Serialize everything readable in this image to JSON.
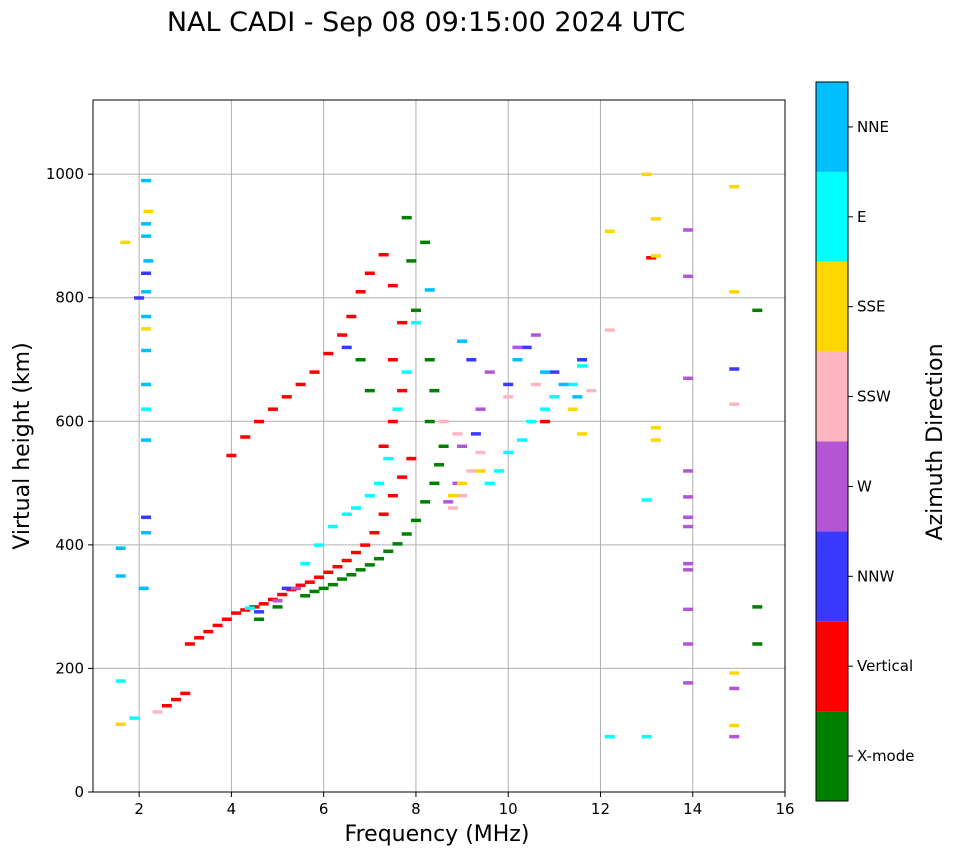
{
  "chart_data": {
    "type": "scatter",
    "title": "NAL CADI - Sep 08 09:15:00 2024 UTC",
    "xlabel": "Frequency (MHz)",
    "ylabel": "Virtual height (km)",
    "xlim": [
      1,
      16
    ],
    "ylim": [
      0,
      1120
    ],
    "xticks": [
      2,
      4,
      6,
      8,
      10,
      12,
      14,
      16
    ],
    "yticks": [
      0,
      200,
      400,
      600,
      800,
      1000
    ],
    "grid": true,
    "colorbar": {
      "label": "Azimuth Direction",
      "categories": [
        {
          "name": "X-mode",
          "color": "#008000"
        },
        {
          "name": "Vertical",
          "color": "#ff0000"
        },
        {
          "name": "NNW",
          "color": "#3a3aff"
        },
        {
          "name": "W",
          "color": "#b455d6"
        },
        {
          "name": "SSW",
          "color": "#ffb6c1"
        },
        {
          "name": "SSE",
          "color": "#ffd700"
        },
        {
          "name": "E",
          "color": "#00ffff"
        },
        {
          "name": "NNE",
          "color": "#00bfff"
        }
      ]
    },
    "series": [
      {
        "name": "X-mode",
        "points": [
          [
            5.6,
            318
          ],
          [
            5.8,
            325
          ],
          [
            6.0,
            330
          ],
          [
            6.2,
            336
          ],
          [
            6.4,
            345
          ],
          [
            6.6,
            352
          ],
          [
            6.8,
            360
          ],
          [
            7.0,
            368
          ],
          [
            7.2,
            378
          ],
          [
            7.4,
            390
          ],
          [
            7.6,
            402
          ],
          [
            7.8,
            418
          ],
          [
            8.0,
            440
          ],
          [
            8.2,
            470
          ],
          [
            8.4,
            500
          ],
          [
            8.5,
            530
          ],
          [
            8.6,
            560
          ],
          [
            8.3,
            600
          ],
          [
            8.4,
            650
          ],
          [
            8.3,
            700
          ],
          [
            8.0,
            780
          ],
          [
            7.9,
            860
          ],
          [
            7.8,
            930
          ],
          [
            8.2,
            890
          ],
          [
            4.6,
            280
          ],
          [
            5.0,
            300
          ],
          [
            15.4,
            780
          ],
          [
            15.4,
            300
          ],
          [
            15.4,
            240
          ],
          [
            7.0,
            650
          ],
          [
            6.8,
            700
          ]
        ]
      },
      {
        "name": "Vertical",
        "points": [
          [
            2.6,
            140
          ],
          [
            2.8,
            150
          ],
          [
            3.0,
            160
          ],
          [
            3.1,
            240
          ],
          [
            3.3,
            250
          ],
          [
            3.5,
            260
          ],
          [
            3.7,
            270
          ],
          [
            3.9,
            280
          ],
          [
            4.1,
            290
          ],
          [
            4.3,
            295
          ],
          [
            4.5,
            300
          ],
          [
            4.7,
            305
          ],
          [
            4.9,
            312
          ],
          [
            5.1,
            320
          ],
          [
            5.3,
            328
          ],
          [
            5.5,
            335
          ],
          [
            5.7,
            340
          ],
          [
            5.9,
            348
          ],
          [
            6.1,
            356
          ],
          [
            6.3,
            365
          ],
          [
            6.5,
            375
          ],
          [
            6.7,
            388
          ],
          [
            6.9,
            400
          ],
          [
            7.1,
            420
          ],
          [
            7.3,
            450
          ],
          [
            7.5,
            480
          ],
          [
            7.7,
            510
          ],
          [
            7.9,
            540
          ],
          [
            4.0,
            545
          ],
          [
            4.3,
            575
          ],
          [
            4.6,
            600
          ],
          [
            4.9,
            620
          ],
          [
            5.2,
            640
          ],
          [
            5.5,
            660
          ],
          [
            5.8,
            680
          ],
          [
            6.1,
            710
          ],
          [
            6.4,
            740
          ],
          [
            6.6,
            770
          ],
          [
            6.8,
            810
          ],
          [
            7.0,
            840
          ],
          [
            7.3,
            870
          ],
          [
            7.5,
            820
          ],
          [
            7.7,
            760
          ],
          [
            7.5,
            700
          ],
          [
            7.7,
            650
          ],
          [
            7.5,
            600
          ],
          [
            7.3,
            560
          ],
          [
            10.8,
            600
          ],
          [
            13.1,
            865
          ]
        ]
      },
      {
        "name": "NNW",
        "points": [
          [
            2.15,
            840
          ],
          [
            2.15,
            445
          ],
          [
            4.6,
            292
          ],
          [
            5.2,
            330
          ],
          [
            6.5,
            720
          ],
          [
            9.2,
            700
          ],
          [
            9.3,
            580
          ],
          [
            10.0,
            660
          ],
          [
            10.4,
            720
          ],
          [
            11.0,
            680
          ],
          [
            11.6,
            700
          ],
          [
            14.9,
            685
          ],
          [
            2.0,
            800
          ]
        ]
      },
      {
        "name": "W",
        "points": [
          [
            5.0,
            310
          ],
          [
            5.4,
            330
          ],
          [
            9.0,
            560
          ],
          [
            9.4,
            620
          ],
          [
            9.6,
            680
          ],
          [
            10.2,
            720
          ],
          [
            10.6,
            740
          ],
          [
            8.7,
            470
          ],
          [
            8.9,
            500
          ],
          [
            13.9,
            910
          ],
          [
            13.9,
            835
          ],
          [
            13.9,
            670
          ],
          [
            13.9,
            520
          ],
          [
            13.9,
            478
          ],
          [
            13.9,
            445
          ],
          [
            13.9,
            430
          ],
          [
            13.9,
            370
          ],
          [
            13.9,
            360
          ],
          [
            13.9,
            296
          ],
          [
            13.9,
            240
          ],
          [
            13.9,
            177
          ],
          [
            14.9,
            168
          ],
          [
            14.9,
            90
          ]
        ]
      },
      {
        "name": "SSW",
        "points": [
          [
            2.4,
            130
          ],
          [
            8.8,
            460
          ],
          [
            9.0,
            480
          ],
          [
            9.2,
            520
          ],
          [
            9.4,
            550
          ],
          [
            8.6,
            600
          ],
          [
            8.9,
            580
          ],
          [
            10.0,
            640
          ],
          [
            10.6,
            660
          ],
          [
            12.2,
            748
          ],
          [
            14.9,
            628
          ],
          [
            11.8,
            650
          ]
        ]
      },
      {
        "name": "SSE",
        "points": [
          [
            1.6,
            110
          ],
          [
            2.2,
            940
          ],
          [
            2.15,
            750
          ],
          [
            1.7,
            890
          ],
          [
            8.8,
            480
          ],
          [
            9.0,
            500
          ],
          [
            9.4,
            520
          ],
          [
            11.4,
            620
          ],
          [
            12.2,
            908
          ],
          [
            13.0,
            1000
          ],
          [
            13.2,
            928
          ],
          [
            13.2,
            868
          ],
          [
            13.2,
            590
          ],
          [
            13.2,
            570
          ],
          [
            14.9,
            980
          ],
          [
            14.9,
            810
          ],
          [
            14.9,
            193
          ],
          [
            14.9,
            108
          ],
          [
            11.6,
            580
          ]
        ]
      },
      {
        "name": "E",
        "points": [
          [
            5.6,
            370
          ],
          [
            5.9,
            400
          ],
          [
            6.2,
            430
          ],
          [
            6.5,
            450
          ],
          [
            6.7,
            460
          ],
          [
            7.0,
            480
          ],
          [
            7.2,
            500
          ],
          [
            7.4,
            540
          ],
          [
            7.6,
            620
          ],
          [
            7.8,
            680
          ],
          [
            8.0,
            760
          ],
          [
            9.6,
            500
          ],
          [
            9.8,
            520
          ],
          [
            10.0,
            550
          ],
          [
            10.3,
            570
          ],
          [
            10.5,
            600
          ],
          [
            10.8,
            620
          ],
          [
            11.0,
            640
          ],
          [
            11.4,
            660
          ],
          [
            11.6,
            690
          ],
          [
            2.15,
            620
          ],
          [
            1.6,
            180
          ],
          [
            1.9,
            120
          ],
          [
            4.4,
            298
          ],
          [
            12.2,
            90
          ],
          [
            13.0,
            90
          ],
          [
            13.0,
            473
          ]
        ]
      },
      {
        "name": "NNE",
        "points": [
          [
            2.15,
            990
          ],
          [
            2.15,
            920
          ],
          [
            2.15,
            900
          ],
          [
            2.2,
            860
          ],
          [
            2.15,
            810
          ],
          [
            2.15,
            770
          ],
          [
            2.15,
            715
          ],
          [
            2.15,
            660
          ],
          [
            2.15,
            570
          ],
          [
            2.15,
            420
          ],
          [
            1.6,
            395
          ],
          [
            1.6,
            350
          ],
          [
            2.1,
            330
          ],
          [
            8.3,
            813
          ],
          [
            9.0,
            730
          ],
          [
            10.2,
            700
          ],
          [
            10.8,
            680
          ],
          [
            11.2,
            660
          ],
          [
            11.5,
            640
          ]
        ]
      }
    ]
  }
}
